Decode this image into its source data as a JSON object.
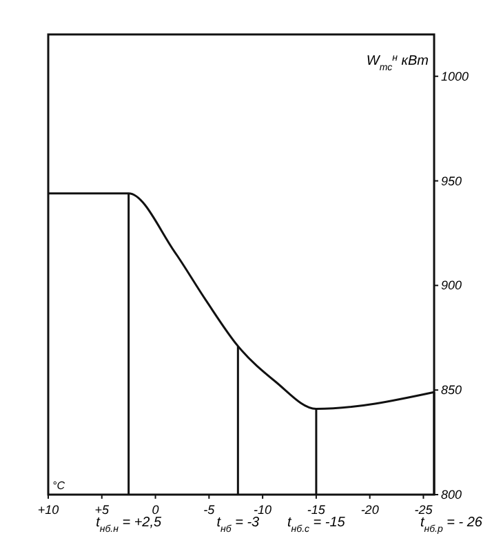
{
  "chart_data": {
    "type": "line",
    "ylabel": "W$_{тс}$$^{н}$ кВт",
    "xlabel": "°C",
    "x": [
      10,
      2.5,
      -1.8,
      -4.7,
      -7.7,
      -11.2,
      -15,
      -26
    ],
    "series": [
      {
        "color": "#111111",
        "values": [
          944,
          944,
          916,
          893,
          871,
          854,
          841,
          849
        ]
      }
    ],
    "xlim": [
      10,
      -26
    ],
    "ylim": [
      800,
      1020
    ],
    "xticks": [
      {
        "value": 10,
        "label": "+10"
      },
      {
        "value": 5,
        "label": "+5"
      },
      0,
      -5,
      -10,
      -15,
      -20,
      -25
    ],
    "yticks": [
      800,
      850,
      900,
      950,
      1000
    ],
    "ref_lines": [
      {
        "axis": "x",
        "value": 2.5
      },
      {
        "axis": "x",
        "value": -7.7
      },
      {
        "axis": "x",
        "value": -15
      },
      {
        "axis": "x",
        "value": -26
      }
    ],
    "annotations": [
      "t$_{нб.н}$ = +2,5",
      "t$_{нб}$ = -3",
      "t$_{нб.с}$ = -15",
      "t$_{нб.р}$ = - 26"
    ],
    "grid": false,
    "marker": "none",
    "line_style": "solid"
  }
}
